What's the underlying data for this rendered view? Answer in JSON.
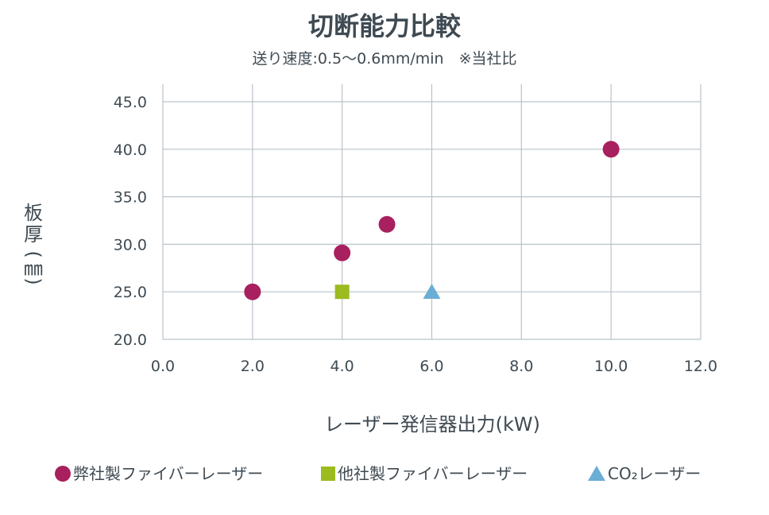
{
  "chart_data": {
    "type": "scatter",
    "title": "切断能力比較",
    "subtitle": "送り速度:0.5〜0.6mm/min　※当社比",
    "xlabel": "レーザー発信器出力(kW)",
    "ylabel_chars": [
      "板",
      "厚",
      "(",
      "㎜",
      ")"
    ],
    "xlim": [
      0,
      12
    ],
    "ylim": [
      20,
      45
    ],
    "x_ticks": [
      0,
      2,
      4,
      6,
      8,
      10,
      12
    ],
    "x_tick_labels": [
      "0.0",
      "2.0",
      "4.0",
      "6.0",
      "8.0",
      "10.0",
      "12.0"
    ],
    "y_ticks": [
      20,
      25,
      30,
      35,
      40,
      45
    ],
    "y_tick_labels": [
      "20.0",
      "25.0",
      "30.0",
      "35.0",
      "40.0",
      "45.0"
    ],
    "grid": true,
    "legend_position": "bottom",
    "series": [
      {
        "name": "弊社製ファイバーレーザー",
        "marker": "circle",
        "color": "#a9205e",
        "points": [
          {
            "x": 2.0,
            "y": 25.0
          },
          {
            "x": 4.0,
            "y": 29.1
          },
          {
            "x": 5.0,
            "y": 32.1
          },
          {
            "x": 10.0,
            "y": 40.0
          }
        ]
      },
      {
        "name": "他社製ファイバーレーザー",
        "marker": "square",
        "color": "#9bbb1f",
        "points": [
          {
            "x": 4.0,
            "y": 25.0
          }
        ]
      },
      {
        "name": "CO₂レーザー",
        "marker": "triangle",
        "color": "#6aaed6",
        "points": [
          {
            "x": 6.0,
            "y": 24.9
          }
        ]
      }
    ]
  }
}
